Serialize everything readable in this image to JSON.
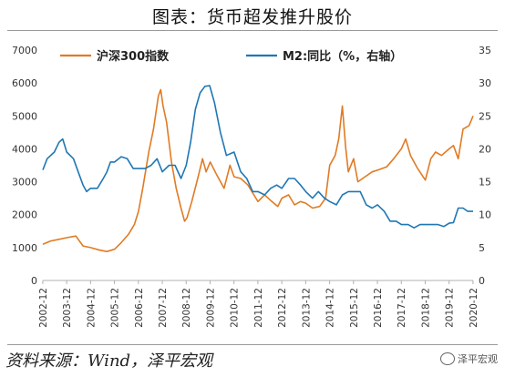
{
  "header": {
    "title": "图表：货币超发推升股价"
  },
  "footer": {
    "source": "资料来源：Wind，泽平宏观",
    "watermark": "泽平宏观"
  },
  "chart_data": {
    "type": "line",
    "title": "图表：货币超发推升股价",
    "x": [
      "2002-12",
      "2003-12",
      "2004-12",
      "2005-12",
      "2006-12",
      "2007-12",
      "2008-12",
      "2009-12",
      "2010-12",
      "2011-12",
      "2012-12",
      "2013-12",
      "2014-12",
      "2015-12",
      "2016-12",
      "2017-12",
      "2018-12",
      "2019-12",
      "2020-12"
    ],
    "y_left": {
      "ylim": [
        0,
        7000
      ],
      "ticks": [
        0,
        1000,
        2000,
        3000,
        4000,
        5000,
        6000,
        7000
      ]
    },
    "y_right": {
      "ylim": [
        0,
        35
      ],
      "ticks": [
        0,
        5,
        10,
        15,
        20,
        25,
        30,
        35
      ]
    },
    "grid": false,
    "legend_position": "top",
    "series": [
      {
        "name": "沪深300指数",
        "axis": "left",
        "color": "#e07b24",
        "points": [
          [
            2002.92,
            1100
          ],
          [
            2003.25,
            1200
          ],
          [
            2003.6,
            1250
          ],
          [
            2003.92,
            1300
          ],
          [
            2004.3,
            1350
          ],
          [
            2004.6,
            1050
          ],
          [
            2004.92,
            1000
          ],
          [
            2005.3,
            920
          ],
          [
            2005.6,
            880
          ],
          [
            2005.92,
            950
          ],
          [
            2006.2,
            1150
          ],
          [
            2006.5,
            1400
          ],
          [
            2006.75,
            1700
          ],
          [
            2006.92,
            2100
          ],
          [
            2007.1,
            2800
          ],
          [
            2007.35,
            3900
          ],
          [
            2007.55,
            4600
          ],
          [
            2007.75,
            5600
          ],
          [
            2007.85,
            5800
          ],
          [
            2007.95,
            5300
          ],
          [
            2008.1,
            4800
          ],
          [
            2008.3,
            3600
          ],
          [
            2008.5,
            2800
          ],
          [
            2008.7,
            2200
          ],
          [
            2008.85,
            1800
          ],
          [
            2008.95,
            1900
          ],
          [
            2009.15,
            2400
          ],
          [
            2009.4,
            3100
          ],
          [
            2009.6,
            3700
          ],
          [
            2009.75,
            3300
          ],
          [
            2009.92,
            3600
          ],
          [
            2010.2,
            3200
          ],
          [
            2010.5,
            2800
          ],
          [
            2010.75,
            3500
          ],
          [
            2010.92,
            3150
          ],
          [
            2011.2,
            3100
          ],
          [
            2011.5,
            2900
          ],
          [
            2011.75,
            2600
          ],
          [
            2011.92,
            2400
          ],
          [
            2012.2,
            2600
          ],
          [
            2012.5,
            2400
          ],
          [
            2012.75,
            2250
          ],
          [
            2012.92,
            2500
          ],
          [
            2013.2,
            2600
          ],
          [
            2013.45,
            2300
          ],
          [
            2013.7,
            2400
          ],
          [
            2013.92,
            2350
          ],
          [
            2014.2,
            2200
          ],
          [
            2014.5,
            2250
          ],
          [
            2014.75,
            2500
          ],
          [
            2014.92,
            3500
          ],
          [
            2015.15,
            3800
          ],
          [
            2015.3,
            4300
          ],
          [
            2015.45,
            5300
          ],
          [
            2015.58,
            4100
          ],
          [
            2015.7,
            3300
          ],
          [
            2015.92,
            3700
          ],
          [
            2016.1,
            3000
          ],
          [
            2016.4,
            3150
          ],
          [
            2016.7,
            3300
          ],
          [
            2016.92,
            3350
          ],
          [
            2017.3,
            3450
          ],
          [
            2017.6,
            3700
          ],
          [
            2017.92,
            4000
          ],
          [
            2018.1,
            4300
          ],
          [
            2018.3,
            3800
          ],
          [
            2018.6,
            3400
          ],
          [
            2018.92,
            3050
          ],
          [
            2019.15,
            3700
          ],
          [
            2019.35,
            3900
          ],
          [
            2019.6,
            3800
          ],
          [
            2019.92,
            4000
          ],
          [
            2020.1,
            4100
          ],
          [
            2020.3,
            3700
          ],
          [
            2020.5,
            4600
          ],
          [
            2020.75,
            4700
          ],
          [
            2020.92,
            5000
          ]
        ]
      },
      {
        "name": "M2:同比（%，右轴）",
        "axis": "right",
        "color": "#1f77b4",
        "points": [
          [
            2002.92,
            16.8
          ],
          [
            2003.1,
            18.5
          ],
          [
            2003.4,
            19.5
          ],
          [
            2003.6,
            21.0
          ],
          [
            2003.75,
            21.5
          ],
          [
            2003.92,
            19.5
          ],
          [
            2004.2,
            18.5
          ],
          [
            2004.45,
            16.0
          ],
          [
            2004.6,
            14.5
          ],
          [
            2004.75,
            13.5
          ],
          [
            2004.92,
            14.0
          ],
          [
            2005.2,
            14.0
          ],
          [
            2005.45,
            15.5
          ],
          [
            2005.6,
            16.5
          ],
          [
            2005.75,
            18.0
          ],
          [
            2005.92,
            18.0
          ],
          [
            2006.2,
            18.8
          ],
          [
            2006.45,
            18.5
          ],
          [
            2006.7,
            17.0
          ],
          [
            2006.92,
            17.0
          ],
          [
            2007.2,
            17.0
          ],
          [
            2007.45,
            17.5
          ],
          [
            2007.7,
            18.5
          ],
          [
            2007.92,
            16.5
          ],
          [
            2008.2,
            17.5
          ],
          [
            2008.45,
            17.5
          ],
          [
            2008.7,
            15.5
          ],
          [
            2008.92,
            17.5
          ],
          [
            2009.1,
            21.0
          ],
          [
            2009.3,
            26.0
          ],
          [
            2009.5,
            28.5
          ],
          [
            2009.7,
            29.5
          ],
          [
            2009.9,
            29.6
          ],
          [
            2010.1,
            27.0
          ],
          [
            2010.35,
            22.5
          ],
          [
            2010.6,
            19.0
          ],
          [
            2010.92,
            19.5
          ],
          [
            2011.2,
            16.5
          ],
          [
            2011.45,
            15.5
          ],
          [
            2011.7,
            13.5
          ],
          [
            2011.92,
            13.5
          ],
          [
            2012.2,
            13.0
          ],
          [
            2012.45,
            14.0
          ],
          [
            2012.7,
            14.5
          ],
          [
            2012.92,
            14.0
          ],
          [
            2013.2,
            15.5
          ],
          [
            2013.45,
            15.5
          ],
          [
            2013.7,
            14.5
          ],
          [
            2013.92,
            13.5
          ],
          [
            2014.2,
            12.5
          ],
          [
            2014.45,
            13.5
          ],
          [
            2014.7,
            12.5
          ],
          [
            2014.92,
            12.0
          ],
          [
            2015.2,
            11.5
          ],
          [
            2015.45,
            13.0
          ],
          [
            2015.7,
            13.5
          ],
          [
            2015.92,
            13.5
          ],
          [
            2016.2,
            13.5
          ],
          [
            2016.45,
            11.5
          ],
          [
            2016.7,
            11.0
          ],
          [
            2016.92,
            11.5
          ],
          [
            2017.2,
            10.5
          ],
          [
            2017.45,
            9.0
          ],
          [
            2017.7,
            9.0
          ],
          [
            2017.92,
            8.5
          ],
          [
            2018.2,
            8.5
          ],
          [
            2018.45,
            8.0
          ],
          [
            2018.7,
            8.5
          ],
          [
            2018.92,
            8.5
          ],
          [
            2019.2,
            8.5
          ],
          [
            2019.45,
            8.5
          ],
          [
            2019.7,
            8.2
          ],
          [
            2019.92,
            8.7
          ],
          [
            2020.1,
            8.8
          ],
          [
            2020.3,
            11.0
          ],
          [
            2020.5,
            11.0
          ],
          [
            2020.7,
            10.5
          ],
          [
            2020.92,
            10.5
          ]
        ]
      }
    ]
  }
}
